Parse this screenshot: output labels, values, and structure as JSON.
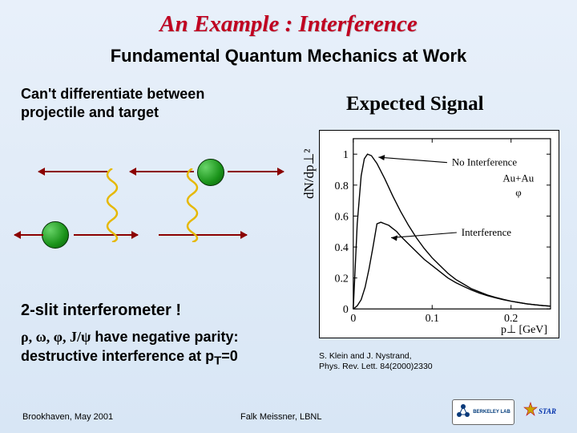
{
  "title": "An Example : Interference",
  "subtitle": "Fundamental Quantum Mechanics at Work",
  "upper_left_l1": "Can't differentiate between",
  "upper_left_l2": "projectile  and target",
  "expected_signal": "Expected Signal",
  "slit": "2-slit interferometer !",
  "parity_l1_pre": "ρ, ω, φ, J/ψ",
  "parity_l1_post": " have negative parity:",
  "parity_l2_pre": "destructive interference at p",
  "parity_l2_sub": "T",
  "parity_l2_post": "=0",
  "cite_l1": "S. Klein and J. Nystrand,",
  "cite_l2": "Phys. Rev. Lett. 84(2000)2330",
  "footer_left": "Brookhaven,  May 2001",
  "footer_center": "Falk Meissner, LBNL",
  "logo_text": "BERKELEY LAB",
  "chart": {
    "type": "line",
    "xlim": [
      0,
      0.25
    ],
    "ylim": [
      0,
      1.1
    ],
    "xticks": [
      0,
      0.1,
      0.2
    ],
    "yticks": [
      0,
      0.2,
      0.4,
      0.6,
      0.8,
      1
    ],
    "xlabel": "p⊥ [GeV]",
    "ylabel": "dN/dp⊥²",
    "bg": "#ffffff",
    "axis": "#000000",
    "curve": "#000000",
    "anno1": "No Interference",
    "anno2a": "Au+Au",
    "anno2b": "φ",
    "anno3": "Interference",
    "no_interf": [
      [
        0.0,
        0.0
      ],
      [
        0.005,
        0.55
      ],
      [
        0.01,
        0.86
      ],
      [
        0.014,
        0.97
      ],
      [
        0.018,
        1.0
      ],
      [
        0.023,
        0.99
      ],
      [
        0.03,
        0.94
      ],
      [
        0.04,
        0.84
      ],
      [
        0.05,
        0.73
      ],
      [
        0.06,
        0.63
      ],
      [
        0.07,
        0.54
      ],
      [
        0.08,
        0.46
      ],
      [
        0.09,
        0.39
      ],
      [
        0.1,
        0.33
      ],
      [
        0.11,
        0.28
      ],
      [
        0.12,
        0.23
      ],
      [
        0.13,
        0.19
      ],
      [
        0.14,
        0.16
      ],
      [
        0.15,
        0.13
      ],
      [
        0.16,
        0.11
      ],
      [
        0.17,
        0.09
      ],
      [
        0.18,
        0.075
      ],
      [
        0.19,
        0.062
      ],
      [
        0.2,
        0.05
      ],
      [
        0.21,
        0.041
      ],
      [
        0.22,
        0.033
      ],
      [
        0.23,
        0.027
      ],
      [
        0.24,
        0.022
      ],
      [
        0.25,
        0.018
      ]
    ],
    "interf": [
      [
        0.0,
        0.0
      ],
      [
        0.005,
        0.02
      ],
      [
        0.01,
        0.06
      ],
      [
        0.015,
        0.14
      ],
      [
        0.02,
        0.26
      ],
      [
        0.025,
        0.4
      ],
      [
        0.03,
        0.55
      ],
      [
        0.035,
        0.56
      ],
      [
        0.04,
        0.55
      ],
      [
        0.045,
        0.54
      ],
      [
        0.05,
        0.52
      ],
      [
        0.055,
        0.5
      ],
      [
        0.06,
        0.47
      ],
      [
        0.07,
        0.42
      ],
      [
        0.08,
        0.37
      ],
      [
        0.09,
        0.32
      ],
      [
        0.1,
        0.28
      ],
      [
        0.11,
        0.24
      ],
      [
        0.12,
        0.2
      ],
      [
        0.13,
        0.17
      ],
      [
        0.14,
        0.145
      ],
      [
        0.15,
        0.122
      ],
      [
        0.16,
        0.102
      ],
      [
        0.17,
        0.086
      ],
      [
        0.18,
        0.072
      ],
      [
        0.19,
        0.06
      ],
      [
        0.2,
        0.05
      ],
      [
        0.21,
        0.041
      ],
      [
        0.22,
        0.033
      ],
      [
        0.23,
        0.027
      ],
      [
        0.24,
        0.022
      ],
      [
        0.25,
        0.018
      ]
    ]
  }
}
